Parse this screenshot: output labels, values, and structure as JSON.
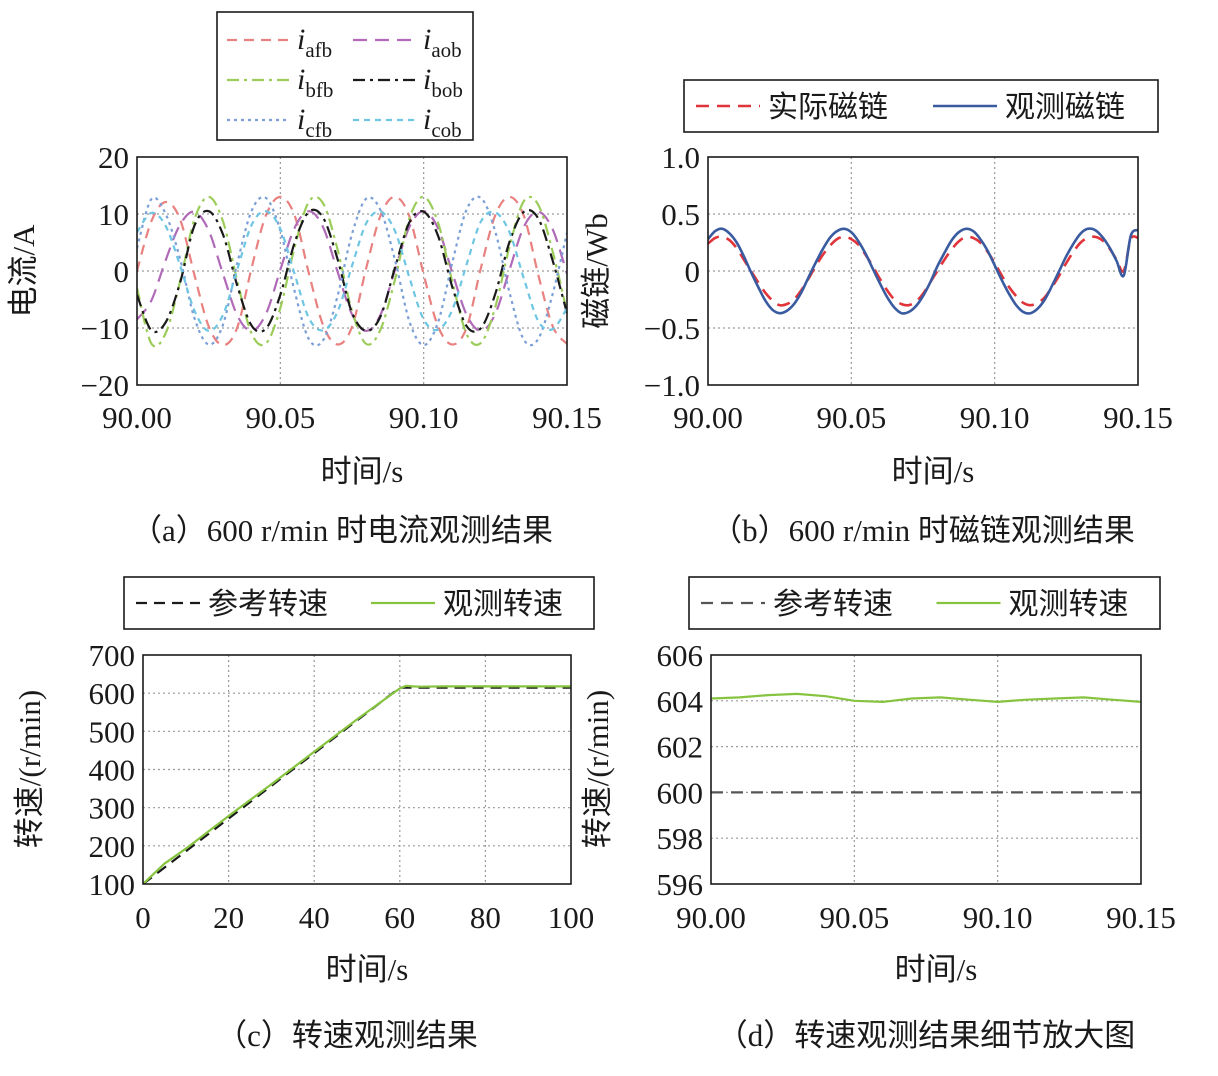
{
  "chart_data": [
    {
      "id": "a",
      "type": "line",
      "caption": "（a）600 r/min 时电流观测结果",
      "xlabel": "时间/s",
      "ylabel": "电流/A",
      "xlim": [
        90.0,
        90.15
      ],
      "ylim": [
        -20,
        20
      ],
      "xticks": [
        "90.00",
        "90.05",
        "90.10",
        "90.15"
      ],
      "yticks": [
        "20",
        "10",
        "0",
        "−10",
        "−20"
      ],
      "grid": true,
      "legend_position": "top",
      "x_samples": [
        90.0,
        90.005,
        90.01,
        90.015,
        90.02,
        90.025,
        90.03,
        90.035,
        90.04,
        90.045,
        90.05,
        90.055,
        90.06,
        90.065,
        90.07,
        90.075,
        90.08,
        90.085,
        90.09,
        90.095,
        90.1,
        90.105,
        90.11,
        90.115,
        90.12,
        90.125,
        90.13,
        90.135,
        90.14,
        90.145,
        90.15
      ],
      "series": [
        {
          "name": "afb",
          "symbol": "i",
          "sub": "afb",
          "color": "#e8817f",
          "dash": "10,7",
          "values": [
            0.0,
            8.7,
            12.1,
            9.1,
            -0.6,
            -9.7,
            -13.0,
            -9.9,
            0.6,
            9.8,
            13.0,
            9.7,
            -0.5,
            -9.6,
            -12.9,
            -9.8,
            0.6,
            9.8,
            13.0,
            9.6,
            -0.6,
            -9.7,
            -12.9,
            -9.9,
            0.6,
            9.8,
            13.0,
            9.6,
            -0.7,
            -9.7,
            -12.8
          ]
        },
        {
          "name": "aob",
          "symbol": "i",
          "sub": "aob",
          "color": "#b06ab8",
          "dash": "14,8",
          "values": [
            -8.5,
            -5.2,
            1.9,
            8.1,
            10.4,
            7.1,
            -0.5,
            -7.8,
            -10.5,
            -7.5,
            0.2,
            7.6,
            10.5,
            7.6,
            -0.2,
            -7.6,
            -10.5,
            -7.6,
            0.2,
            7.7,
            10.5,
            7.5,
            -0.3,
            -7.7,
            -10.5,
            -7.5,
            0.3,
            7.8,
            10.4,
            7.3,
            -0.5
          ]
        },
        {
          "name": "bfb",
          "symbol": "i",
          "sub": "bfb",
          "color": "#9ccc5a",
          "dash": "12,5,3,5",
          "values": [
            -3.0,
            -12.7,
            -10.9,
            -1.9,
            9.0,
            13.0,
            8.7,
            -1.8,
            -11.0,
            -12.7,
            -6.5,
            4.2,
            12.2,
            11.8,
            3.7,
            -7.0,
            -12.8,
            -10.2,
            -1.5,
            9.2,
            13.0,
            8.5,
            -1.9,
            -11.1,
            -12.6,
            -6.3,
            4.4,
            12.3,
            11.6,
            3.4,
            -7.2
          ]
        },
        {
          "name": "bob",
          "symbol": "i",
          "sub": "bob",
          "color": "#1a1a1a",
          "dash": "12,5,3,5",
          "values": [
            -4.2,
            -10.4,
            -9.0,
            -2.1,
            7.9,
            10.5,
            6.4,
            -2.6,
            -9.6,
            -10.1,
            -4.2,
            5.0,
            10.4,
            9.3,
            2.0,
            -7.3,
            -10.5,
            -7.9,
            0.6,
            8.5,
            10.4,
            6.2,
            -2.8,
            -9.7,
            -10.0,
            -4.0,
            5.2,
            10.4,
            9.2,
            1.8,
            -7.4
          ]
        },
        {
          "name": "cfb",
          "symbol": "i",
          "sub": "cfb",
          "color": "#7b9fd6",
          "dash": "3,4",
          "values": [
            4.0,
            12.6,
            10.0,
            2.2,
            -8.2,
            -12.9,
            -9.4,
            1.4,
            10.6,
            12.8,
            7.1,
            -3.6,
            -12.0,
            -12.1,
            -4.3,
            6.5,
            12.7,
            10.6,
            1.9,
            -8.8,
            -13.0,
            -9.0,
            1.5,
            10.8,
            12.8,
            6.9,
            -3.9,
            -12.1,
            -11.9,
            -4.0,
            6.7
          ]
        },
        {
          "name": "cob",
          "symbol": "i",
          "sub": "cob",
          "color": "#6ec6e3",
          "dash": "6,5",
          "values": [
            6.8,
            10.2,
            7.9,
            1.0,
            -6.9,
            -10.5,
            -7.7,
            0.3,
            8.1,
            10.5,
            7.4,
            -0.6,
            -8.3,
            -10.4,
            -7.1,
            0.9,
            8.4,
            10.4,
            7.0,
            -1.1,
            -8.5,
            -10.3,
            -6.8,
            1.2,
            8.7,
            10.3,
            6.7,
            -1.4,
            -8.8,
            -10.2,
            -6.5
          ]
        }
      ]
    },
    {
      "id": "b",
      "type": "line",
      "caption": "（b）600 r/min 时磁链观测结果",
      "xlabel": "时间/s",
      "ylabel": "磁链/Wb",
      "xlim": [
        90.0,
        90.15
      ],
      "ylim": [
        -1.0,
        1.0
      ],
      "xticks": [
        "90.00",
        "90.05",
        "90.10",
        "90.15"
      ],
      "yticks": [
        "1.0",
        "0.5",
        "0",
        "−0.5",
        "−1.0"
      ],
      "grid": true,
      "legend_position": "top",
      "x_samples": [
        90.0,
        90.0025,
        90.005,
        90.0075,
        90.01,
        90.0125,
        90.015,
        90.0175,
        90.02,
        90.0225,
        90.025,
        90.0275,
        90.03,
        90.0325,
        90.035,
        90.0375,
        90.04,
        90.0425,
        90.045,
        90.0475,
        90.05,
        90.0525,
        90.055,
        90.0575,
        90.06,
        90.0625,
        90.065,
        90.0675,
        90.07,
        90.0725,
        90.075,
        90.0775,
        90.08,
        90.0825,
        90.085,
        90.0875,
        90.09,
        90.0925,
        90.095,
        90.0975,
        90.1,
        90.1025,
        90.105,
        90.1075,
        90.11,
        90.1125,
        90.115,
        90.1175,
        90.12,
        90.1225,
        90.125,
        90.1275,
        90.13,
        90.1325,
        90.135,
        90.1375,
        90.14,
        90.1425,
        90.145,
        90.1475,
        90.15
      ],
      "series": [
        {
          "name": "实际磁链",
          "color": "#e0343a",
          "dash": "13,8",
          "values": [
            0.24,
            0.29,
            0.3,
            0.27,
            0.2,
            0.1,
            0.0,
            -0.1,
            -0.19,
            -0.26,
            -0.3,
            -0.29,
            -0.25,
            -0.17,
            -0.07,
            0.04,
            0.14,
            0.22,
            0.28,
            0.3,
            0.28,
            0.23,
            0.14,
            0.04,
            -0.07,
            -0.17,
            -0.25,
            -0.29,
            -0.3,
            -0.27,
            -0.2,
            -0.1,
            0.0,
            0.1,
            0.19,
            0.26,
            0.3,
            0.29,
            0.25,
            0.17,
            0.07,
            -0.04,
            -0.14,
            -0.22,
            -0.28,
            -0.3,
            -0.28,
            -0.23,
            -0.14,
            -0.04,
            0.07,
            0.17,
            0.25,
            0.29,
            0.3,
            0.27,
            0.2,
            0.1,
            0.0,
            0.28,
            0.29
          ]
        },
        {
          "name": "观测磁链",
          "color": "#3a5ba0",
          "dash": "",
          "values": [
            0.28,
            0.35,
            0.37,
            0.33,
            0.25,
            0.13,
            -0.01,
            -0.14,
            -0.26,
            -0.34,
            -0.37,
            -0.35,
            -0.29,
            -0.19,
            -0.06,
            0.07,
            0.19,
            0.29,
            0.35,
            0.37,
            0.34,
            0.26,
            0.15,
            0.02,
            -0.11,
            -0.23,
            -0.32,
            -0.37,
            -0.36,
            -0.31,
            -0.22,
            -0.1,
            0.04,
            0.16,
            0.27,
            0.34,
            0.37,
            0.35,
            0.28,
            0.18,
            0.05,
            -0.08,
            -0.2,
            -0.3,
            -0.36,
            -0.37,
            -0.33,
            -0.25,
            -0.13,
            0.0,
            0.13,
            0.24,
            0.33,
            0.37,
            0.36,
            0.3,
            0.21,
            0.09,
            -0.04,
            0.31,
            0.36
          ]
        }
      ]
    },
    {
      "id": "c",
      "type": "line",
      "caption": "（c）转速观测结果",
      "xlabel": "时间/s",
      "ylabel": "转速/(r/min)",
      "xlim": [
        0,
        100
      ],
      "ylim": [
        0,
        700
      ],
      "xticks": [
        "0",
        "20",
        "40",
        "60",
        "80",
        "100"
      ],
      "yticks": [
        "700",
        "600",
        "500",
        "400",
        "300",
        "200",
        "100"
      ],
      "grid": true,
      "legend_position": "top",
      "series": [
        {
          "name": "参考转速",
          "color": "#1a1a1a",
          "dash": "11,7",
          "x": [
            0,
            60,
            100
          ],
          "values": [
            0,
            600,
            600
          ]
        },
        {
          "name": "观测转速",
          "color": "#86c440",
          "dash": "",
          "x": [
            0,
            5,
            10,
            20,
            30,
            40,
            50,
            60,
            61.5,
            63,
            65,
            70,
            80,
            90,
            100
          ],
          "values": [
            0,
            62,
            108,
            208,
            305,
            404,
            503,
            598,
            606,
            604,
            603,
            604,
            604,
            604,
            604
          ]
        }
      ]
    },
    {
      "id": "d",
      "type": "line",
      "caption": "（d）转速观测结果细节放大图",
      "xlabel": "时间/s",
      "ylabel": "转速/(r/min)",
      "xlim": [
        90.0,
        90.15
      ],
      "ylim": [
        596,
        606
      ],
      "xticks": [
        "90.00",
        "90.05",
        "90.10",
        "90.15"
      ],
      "yticks": [
        "606",
        "604",
        "602",
        "600",
        "598",
        "596"
      ],
      "grid": true,
      "legend_position": "top",
      "series": [
        {
          "name": "参考转速",
          "color": "#555555",
          "dash": "12,8",
          "x": [
            90.0,
            90.15
          ],
          "values": [
            600,
            600
          ]
        },
        {
          "name": "观测转速",
          "color": "#86c440",
          "dash": "",
          "x": [
            90.0,
            90.01,
            90.02,
            90.03,
            90.04,
            90.05,
            90.06,
            90.07,
            90.08,
            90.09,
            90.1,
            90.11,
            90.12,
            90.13,
            90.14,
            90.15
          ],
          "values": [
            604.1,
            604.15,
            604.25,
            604.3,
            604.2,
            604.0,
            603.95,
            604.1,
            604.15,
            604.05,
            603.95,
            604.05,
            604.1,
            604.15,
            604.05,
            603.95
          ]
        }
      ]
    }
  ]
}
